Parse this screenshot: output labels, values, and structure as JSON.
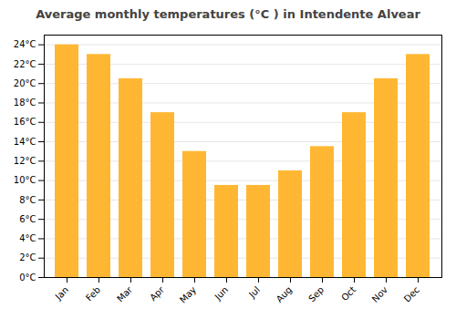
{
  "chart_data": {
    "type": "bar",
    "title": "Average monthly temperatures (°C ) in Intendente Alvear",
    "categories": [
      "Jan",
      "Feb",
      "Mar",
      "Apr",
      "May",
      "Jun",
      "Jul",
      "Aug",
      "Sep",
      "Oct",
      "Nov",
      "Dec"
    ],
    "values": [
      24.0,
      23.0,
      20.5,
      17.0,
      13.0,
      9.5,
      9.5,
      11.0,
      13.5,
      17.0,
      20.5,
      23.0
    ],
    "color": "#FFB733",
    "ylim": [
      0,
      25
    ],
    "yticks": [
      {
        "value": 0,
        "label": "0°C"
      },
      {
        "value": 2,
        "label": "2°C"
      },
      {
        "value": 4,
        "label": "4°C"
      },
      {
        "value": 6,
        "label": "6°C"
      },
      {
        "value": 8,
        "label": "8°C"
      },
      {
        "value": 10,
        "label": "10°C"
      },
      {
        "value": 12,
        "label": "12°C"
      },
      {
        "value": 14,
        "label": "14°C"
      },
      {
        "value": 16,
        "label": "16°C"
      },
      {
        "value": 18,
        "label": "18°C"
      },
      {
        "value": 20,
        "label": "20°C"
      },
      {
        "value": 22,
        "label": "22°C"
      },
      {
        "value": 24,
        "label": "24°C"
      }
    ],
    "grid": true
  }
}
